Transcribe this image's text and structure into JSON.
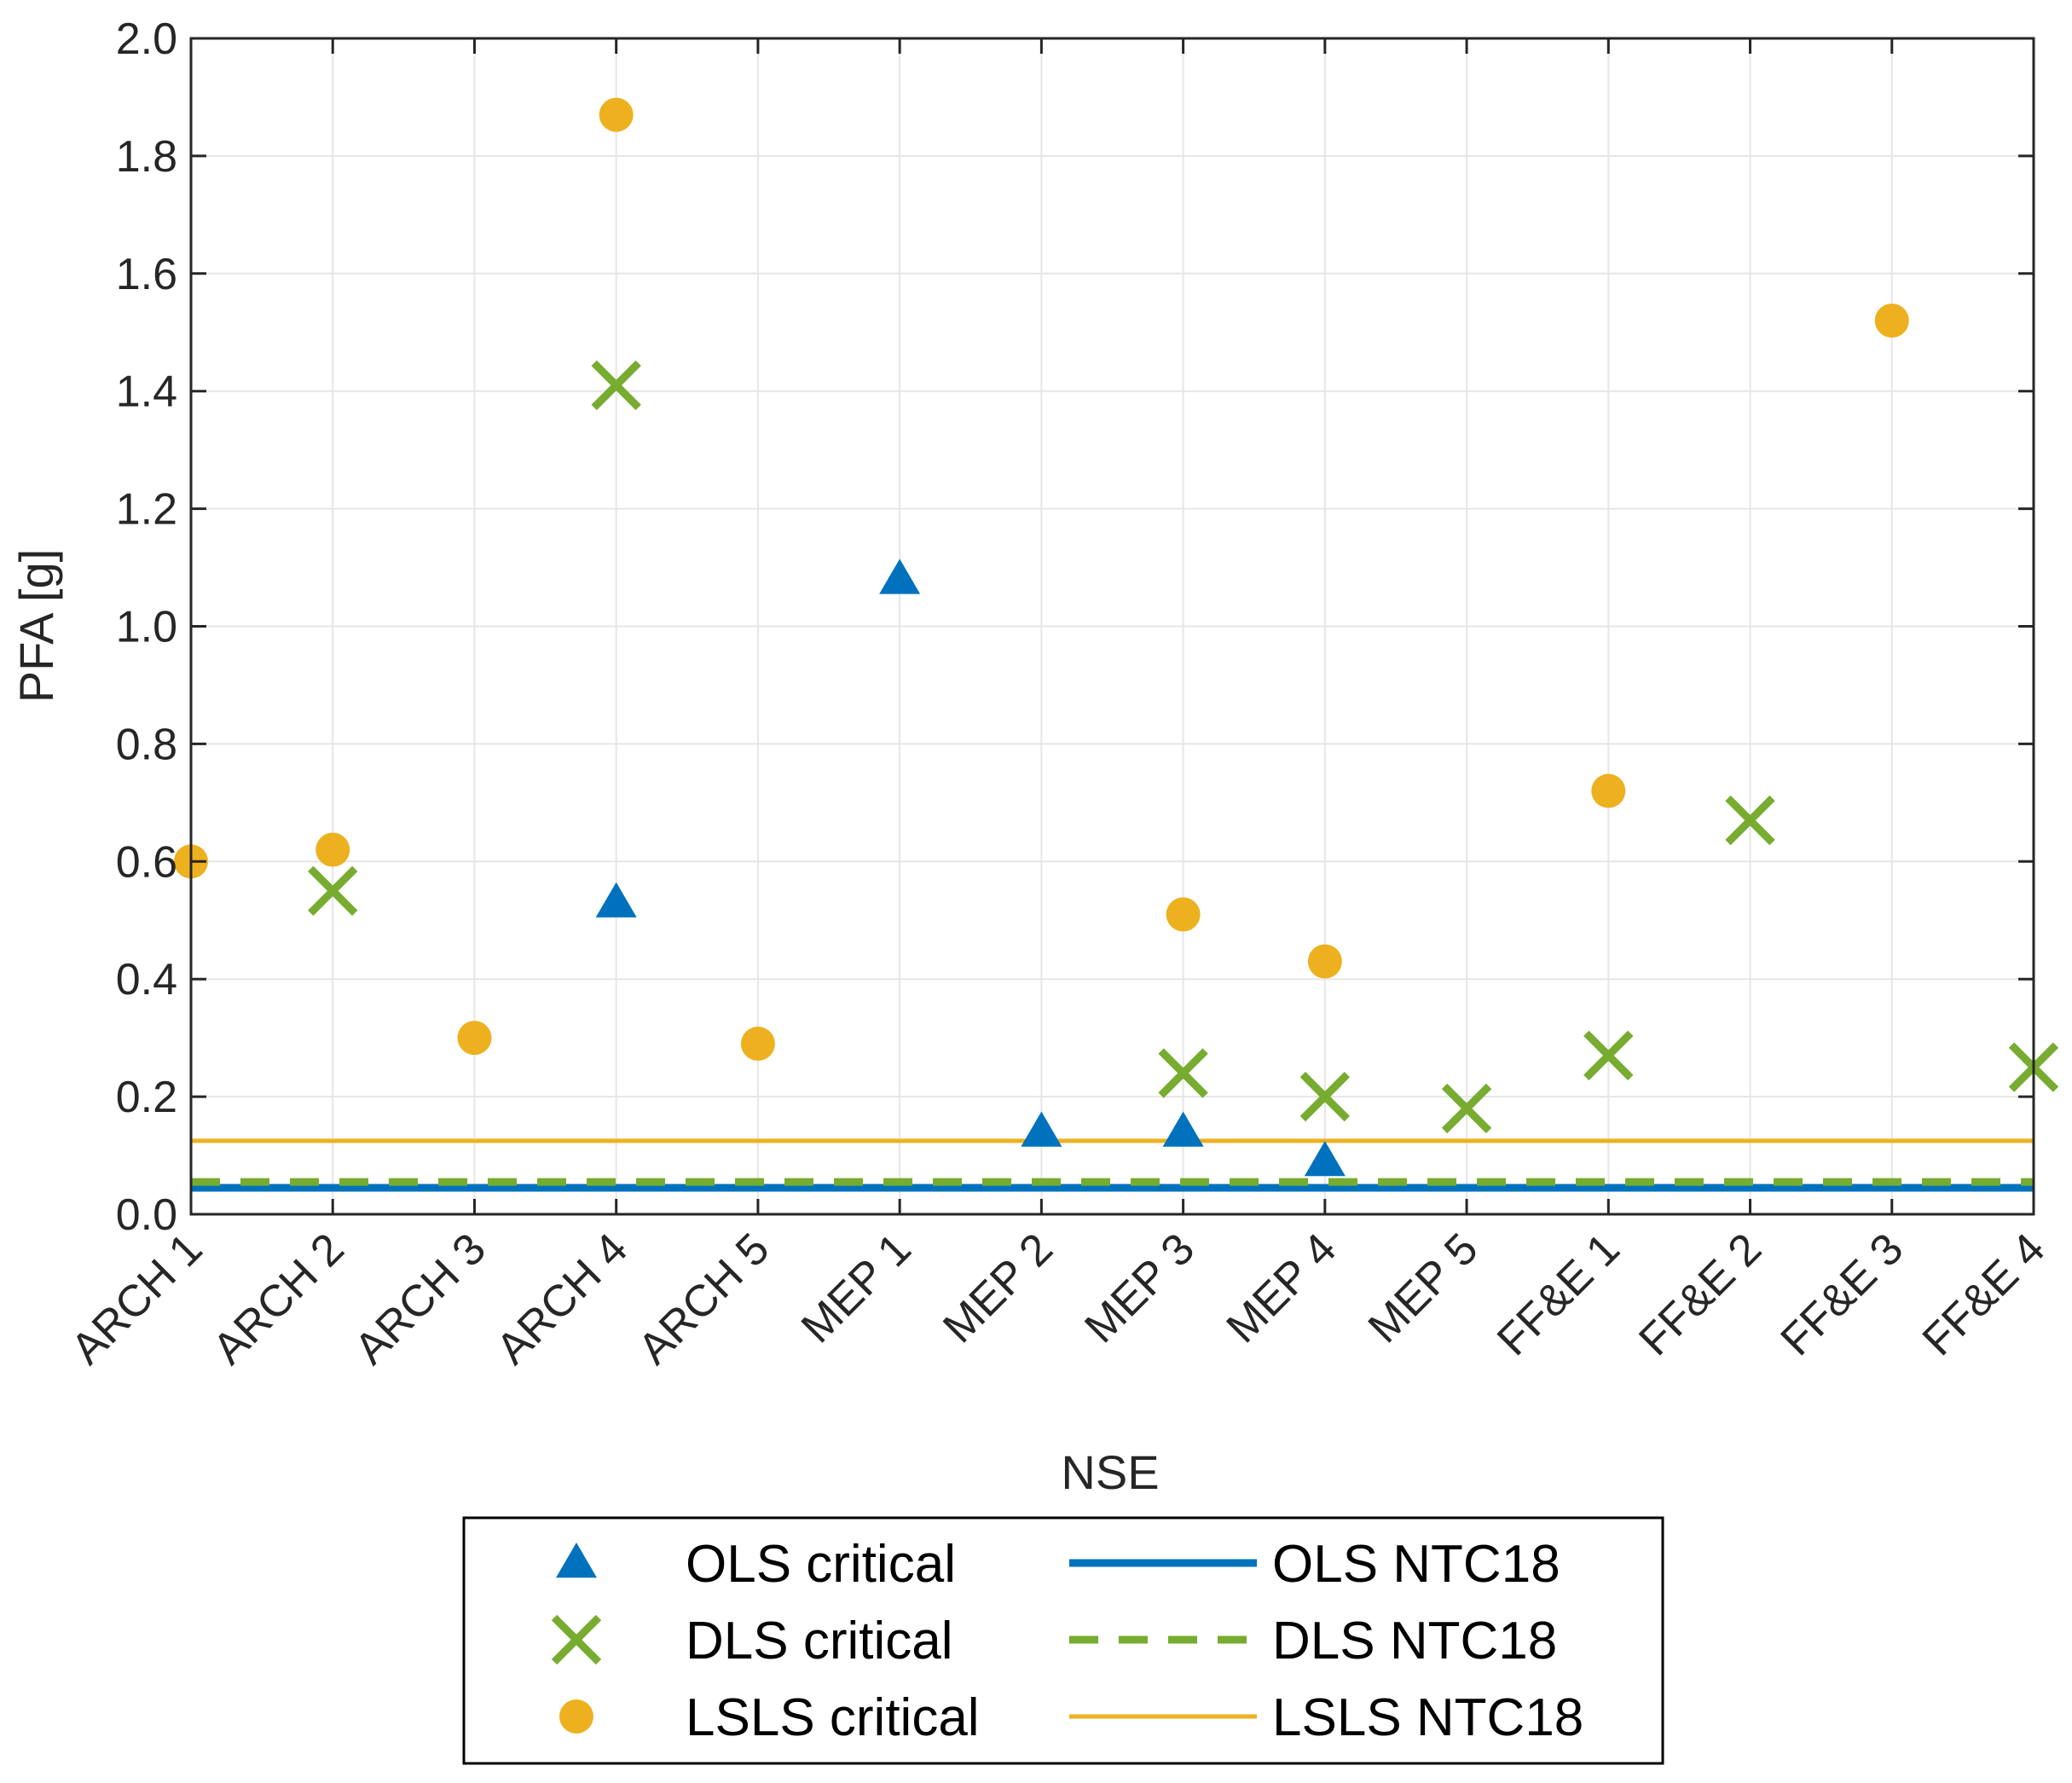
{
  "chart_data": {
    "type": "scatter",
    "title": "",
    "xlabel": "NSE",
    "ylabel": "PFA [g]",
    "ylim": [
      0,
      2
    ],
    "yticks": [
      "0.0",
      "0.2",
      "0.4",
      "0.6",
      "0.8",
      "1.0",
      "1.2",
      "1.4",
      "1.6",
      "1.8",
      "2.0"
    ],
    "grid": true,
    "categories": [
      "ARCH 1",
      "ARCH 2",
      "ARCH 3",
      "ARCH 4",
      "ARCH 5",
      "MEP 1",
      "MEP 2",
      "MEP 3",
      "MEP 4",
      "MEP 5",
      "FF&E 1",
      "FF&E 2",
      "FF&E 3",
      "FF&E 4"
    ],
    "series": [
      {
        "name": "OLS critical",
        "marker": "triangle",
        "color": "#0072BD",
        "points": [
          {
            "x": "ARCH 4",
            "y": 0.53
          },
          {
            "x": "MEP 1",
            "y": 1.08
          },
          {
            "x": "MEP 2",
            "y": 0.14
          },
          {
            "x": "MEP 3",
            "y": 0.14
          },
          {
            "x": "MEP 4",
            "y": 0.09
          }
        ]
      },
      {
        "name": "DLS critical",
        "marker": "x",
        "color": "#77AC30",
        "points": [
          {
            "x": "ARCH 2",
            "y": 0.55
          },
          {
            "x": "ARCH 4",
            "y": 1.41
          },
          {
            "x": "MEP 3",
            "y": 0.24
          },
          {
            "x": "MEP 4",
            "y": 0.2
          },
          {
            "x": "MEP 5",
            "y": 0.18
          },
          {
            "x": "FF&E 1",
            "y": 0.27
          },
          {
            "x": "FF&E 2",
            "y": 0.67
          },
          {
            "x": "FF&E 4",
            "y": 0.25
          }
        ]
      },
      {
        "name": "LSLS critical",
        "marker": "circle",
        "color": "#EDB120",
        "points": [
          {
            "x": "ARCH 1",
            "y": 0.6
          },
          {
            "x": "ARCH 2",
            "y": 0.62
          },
          {
            "x": "ARCH 3",
            "y": 0.3
          },
          {
            "x": "ARCH 4",
            "y": 1.87
          },
          {
            "x": "ARCH 5",
            "y": 0.29
          },
          {
            "x": "MEP 3",
            "y": 0.51
          },
          {
            "x": "MEP 4",
            "y": 0.43
          },
          {
            "x": "FF&E 1",
            "y": 0.72
          },
          {
            "x": "FF&E 3",
            "y": 1.52
          }
        ]
      }
    ],
    "reference_lines": [
      {
        "name": "OLS NTC18",
        "y": 0.045,
        "style": "solid",
        "color": "#0072BD"
      },
      {
        "name": "DLS NTC18",
        "y": 0.055,
        "style": "dashed",
        "color": "#77AC30"
      },
      {
        "name": "LSLS NTC18",
        "y": 0.125,
        "style": "solid",
        "color": "#EDB120"
      }
    ],
    "legend": {
      "position": "bottom-outside",
      "columns": [
        [
          "OLS critical",
          "DLS critical",
          "LSLS critical"
        ],
        [
          "OLS NTC18",
          "DLS NTC18",
          "LSLS NTC18"
        ]
      ]
    }
  }
}
